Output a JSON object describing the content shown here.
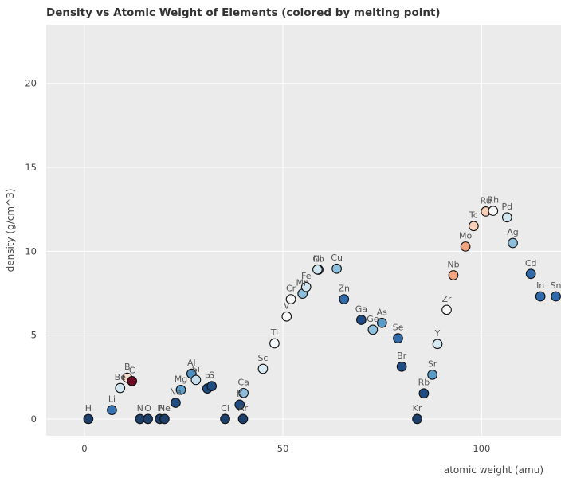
{
  "chart_data": {
    "type": "scatter",
    "title": "Density vs Atomic Weight of Elements (colored by melting point)",
    "xlabel": "atomic weight (amu)",
    "ylabel": "density (g/cm^3)",
    "xlim": [
      -9.6,
      120
    ],
    "ylim": [
      -1,
      23.5
    ],
    "xticks": [
      0,
      50,
      100
    ],
    "yticks": [
      0,
      5,
      10,
      15,
      20
    ],
    "grid": true,
    "points": [
      {
        "label": "H",
        "x": 1.008,
        "y": 9e-05,
        "color": "#1c3f6b"
      },
      {
        "label": "Li",
        "x": 6.94,
        "y": 0.534,
        "color": "#3774b4"
      },
      {
        "label": "Be",
        "x": 9.012,
        "y": 1.85,
        "color": "#d2e6f1"
      },
      {
        "label": "B",
        "x": 10.81,
        "y": 2.46,
        "color": "#f6dccd"
      },
      {
        "label": "C",
        "x": 12.01,
        "y": 2.26,
        "color": "#6e0a23"
      },
      {
        "label": "N",
        "x": 14.01,
        "y": 0.00125,
        "color": "#1c3f6b"
      },
      {
        "label": "O",
        "x": 16.0,
        "y": 0.00143,
        "color": "#1c3f6b"
      },
      {
        "label": "F",
        "x": 19.0,
        "y": 0.0017,
        "color": "#1c3f6b"
      },
      {
        "label": "Ne",
        "x": 20.18,
        "y": 0.0009,
        "color": "#1c3f6b"
      },
      {
        "label": "Na",
        "x": 22.99,
        "y": 0.97,
        "color": "#1f4c82"
      },
      {
        "label": "Mg",
        "x": 24.31,
        "y": 1.74,
        "color": "#5a9bc8"
      },
      {
        "label": "Al",
        "x": 26.98,
        "y": 2.7,
        "color": "#4f8fc2"
      },
      {
        "label": "Si",
        "x": 28.09,
        "y": 2.33,
        "color": "#c6dfee"
      },
      {
        "label": "P",
        "x": 30.97,
        "y": 1.82,
        "color": "#1f4c82"
      },
      {
        "label": "S",
        "x": 32.06,
        "y": 1.96,
        "color": "#1f4c82"
      },
      {
        "label": "Cl",
        "x": 35.45,
        "y": 0.0032,
        "color": "#1c3f6b"
      },
      {
        "label": "K",
        "x": 39.1,
        "y": 0.86,
        "color": "#1f4c82"
      },
      {
        "label": "Ar",
        "x": 39.95,
        "y": 0.0018,
        "color": "#1c3f6b"
      },
      {
        "label": "Ca",
        "x": 40.08,
        "y": 1.55,
        "color": "#8dbfdd"
      },
      {
        "label": "Sc",
        "x": 44.96,
        "y": 2.99,
        "color": "#d7e9f3"
      },
      {
        "label": "Ti",
        "x": 47.87,
        "y": 4.51,
        "color": "#f4f7fa"
      },
      {
        "label": "V",
        "x": 50.94,
        "y": 6.11,
        "color": "#f7f7f7"
      },
      {
        "label": "Cr",
        "x": 52.0,
        "y": 7.14,
        "color": "#f7f7f7"
      },
      {
        "label": "Mn",
        "x": 54.94,
        "y": 7.47,
        "color": "#8ec0de"
      },
      {
        "label": "Fe",
        "x": 55.85,
        "y": 7.87,
        "color": "#d2e6f1"
      },
      {
        "label": "Co",
        "x": 58.93,
        "y": 8.9,
        "color": "#d2e6f1"
      },
      {
        "label": "Ni",
        "x": 58.69,
        "y": 8.91,
        "color": "#d2e6f1"
      },
      {
        "label": "Cu",
        "x": 63.55,
        "y": 8.96,
        "color": "#8ec0de"
      },
      {
        "label": "Zn",
        "x": 65.38,
        "y": 7.14,
        "color": "#2f6aab"
      },
      {
        "label": "Ga",
        "x": 69.72,
        "y": 5.91,
        "color": "#1f4c82"
      },
      {
        "label": "Ge",
        "x": 72.63,
        "y": 5.32,
        "color": "#8ec0de"
      },
      {
        "label": "As",
        "x": 74.92,
        "y": 5.73,
        "color": "#5a9bc8"
      },
      {
        "label": "Se",
        "x": 78.97,
        "y": 4.81,
        "color": "#2f6aab"
      },
      {
        "label": "Br",
        "x": 79.9,
        "y": 3.12,
        "color": "#1f4c82"
      },
      {
        "label": "Kr",
        "x": 83.8,
        "y": 0.00375,
        "color": "#1c3f6b"
      },
      {
        "label": "Rb",
        "x": 85.47,
        "y": 1.53,
        "color": "#1f4c82"
      },
      {
        "label": "Sr",
        "x": 87.62,
        "y": 2.64,
        "color": "#5a9bc8"
      },
      {
        "label": "Y",
        "x": 88.91,
        "y": 4.47,
        "color": "#d7e9f3"
      },
      {
        "label": "Zr",
        "x": 91.22,
        "y": 6.51,
        "color": "#f7f7f7"
      },
      {
        "label": "Nb",
        "x": 92.91,
        "y": 8.57,
        "color": "#f2a481"
      },
      {
        "label": "Mo",
        "x": 95.95,
        "y": 10.28,
        "color": "#f2a481"
      },
      {
        "label": "Tc",
        "x": 98.0,
        "y": 11.5,
        "color": "#fbd0b9"
      },
      {
        "label": "Ru",
        "x": 101.07,
        "y": 12.37,
        "color": "#fbd0b9"
      },
      {
        "label": "Rh",
        "x": 102.91,
        "y": 12.41,
        "color": "#f7f7f7"
      },
      {
        "label": "Pd",
        "x": 106.42,
        "y": 12.02,
        "color": "#d2e6f1"
      },
      {
        "label": "Ag",
        "x": 107.87,
        "y": 10.49,
        "color": "#8ec0de"
      },
      {
        "label": "Cd",
        "x": 112.41,
        "y": 8.65,
        "color": "#2f6aab"
      },
      {
        "label": "In",
        "x": 114.82,
        "y": 7.31,
        "color": "#2f6aab"
      },
      {
        "label": "Sn",
        "x": 118.71,
        "y": 7.31,
        "color": "#2f6aab"
      }
    ]
  }
}
